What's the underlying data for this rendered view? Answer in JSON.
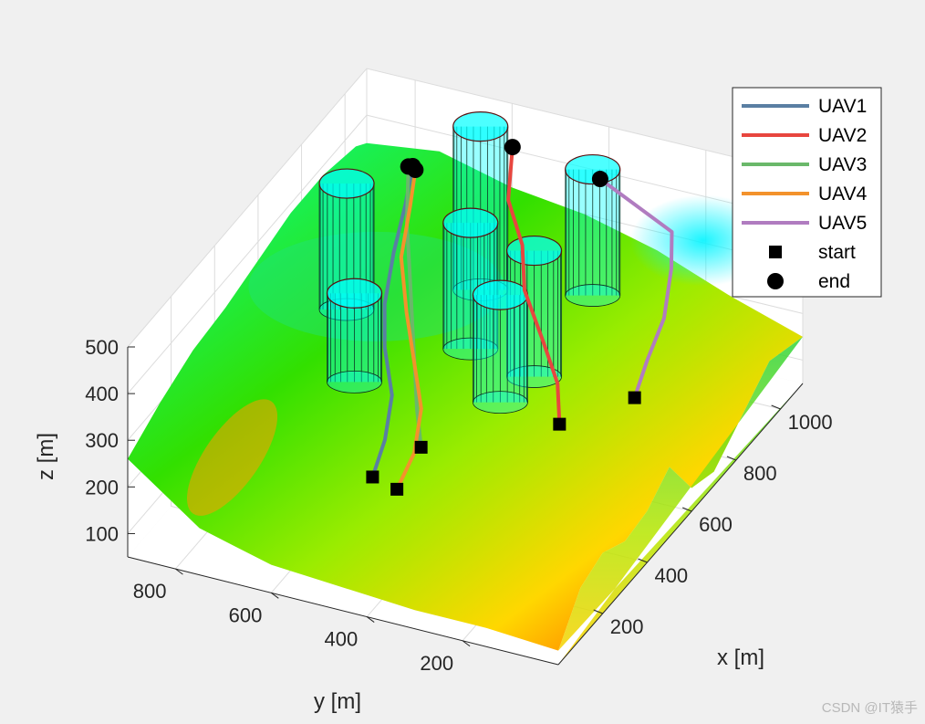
{
  "chart_data": {
    "type": "line",
    "subtype": "3d-terrain-paths",
    "xlabel": "x [m]",
    "ylabel": "y [m]",
    "zlabel": "z [m]",
    "xticks": [
      200,
      400,
      600,
      800,
      1000
    ],
    "yticks": [
      200,
      400,
      600,
      800
    ],
    "zticks": [
      100,
      200,
      300,
      400,
      500
    ],
    "xlim": [
      0,
      1100
    ],
    "ylim": [
      0,
      900
    ],
    "zlim": [
      50,
      500
    ],
    "grid": true,
    "legend_position": "top-right",
    "surface_colormap": "jet",
    "obstacles": {
      "shape": "cylinder",
      "color": "#00ffff",
      "items": [
        {
          "x": 830,
          "y": 820,
          "z_bottom": 150,
          "z_top": 420
        },
        {
          "x": 1000,
          "y": 620,
          "z_bottom": 150,
          "z_top": 500
        },
        {
          "x": 800,
          "y": 550,
          "z_bottom": 150,
          "z_top": 420
        },
        {
          "x": 760,
          "y": 400,
          "z_bottom": 150,
          "z_top": 420
        },
        {
          "x": 600,
          "y": 700,
          "z_bottom": 150,
          "z_top": 340
        },
        {
          "x": 1070,
          "y": 420,
          "z_bottom": 150,
          "z_top": 420
        },
        {
          "x": 650,
          "y": 420,
          "z_bottom": 150,
          "z_top": 380
        }
      ]
    },
    "series": [
      {
        "name": "UAV1",
        "color": "#5a7fa3",
        "points": [
          [
            200,
            480,
            220
          ],
          [
            300,
            500,
            240
          ],
          [
            420,
            540,
            260
          ],
          [
            540,
            610,
            280
          ],
          [
            650,
            660,
            300
          ],
          [
            780,
            700,
            330
          ],
          [
            900,
            730,
            360
          ],
          [
            1000,
            760,
            380
          ]
        ]
      },
      {
        "name": "UAV2",
        "color": "#e8463f",
        "points": [
          [
            460,
            210,
            260
          ],
          [
            560,
            260,
            280
          ],
          [
            650,
            330,
            300
          ],
          [
            760,
            420,
            330
          ],
          [
            860,
            470,
            360
          ],
          [
            950,
            540,
            390
          ],
          [
            1080,
            590,
            420
          ]
        ]
      },
      {
        "name": "UAV3",
        "color": "#6ab86a",
        "points": [
          [
            290,
            420,
            250
          ],
          [
            380,
            470,
            270
          ],
          [
            480,
            520,
            290
          ],
          [
            600,
            580,
            310
          ],
          [
            720,
            640,
            340
          ],
          [
            840,
            700,
            360
          ],
          [
            980,
            760,
            390
          ]
        ]
      },
      {
        "name": "UAV4",
        "color": "#f3922c",
        "points": [
          [
            180,
            420,
            220
          ],
          [
            280,
            430,
            240
          ],
          [
            400,
            470,
            260
          ],
          [
            520,
            540,
            280
          ],
          [
            640,
            610,
            300
          ],
          [
            770,
            680,
            330
          ],
          [
            900,
            720,
            360
          ],
          [
            990,
            750,
            380
          ]
        ]
      },
      {
        "name": "UAV5",
        "color": "#b07cc0",
        "points": [
          [
            560,
            100,
            290
          ],
          [
            660,
            120,
            310
          ],
          [
            780,
            140,
            330
          ],
          [
            900,
            180,
            360
          ],
          [
            990,
            220,
            380
          ],
          [
            1060,
            400,
            410
          ]
        ]
      }
    ],
    "markers": [
      {
        "name": "start",
        "shape": "square"
      },
      {
        "name": "end",
        "shape": "circle"
      }
    ]
  }
}
